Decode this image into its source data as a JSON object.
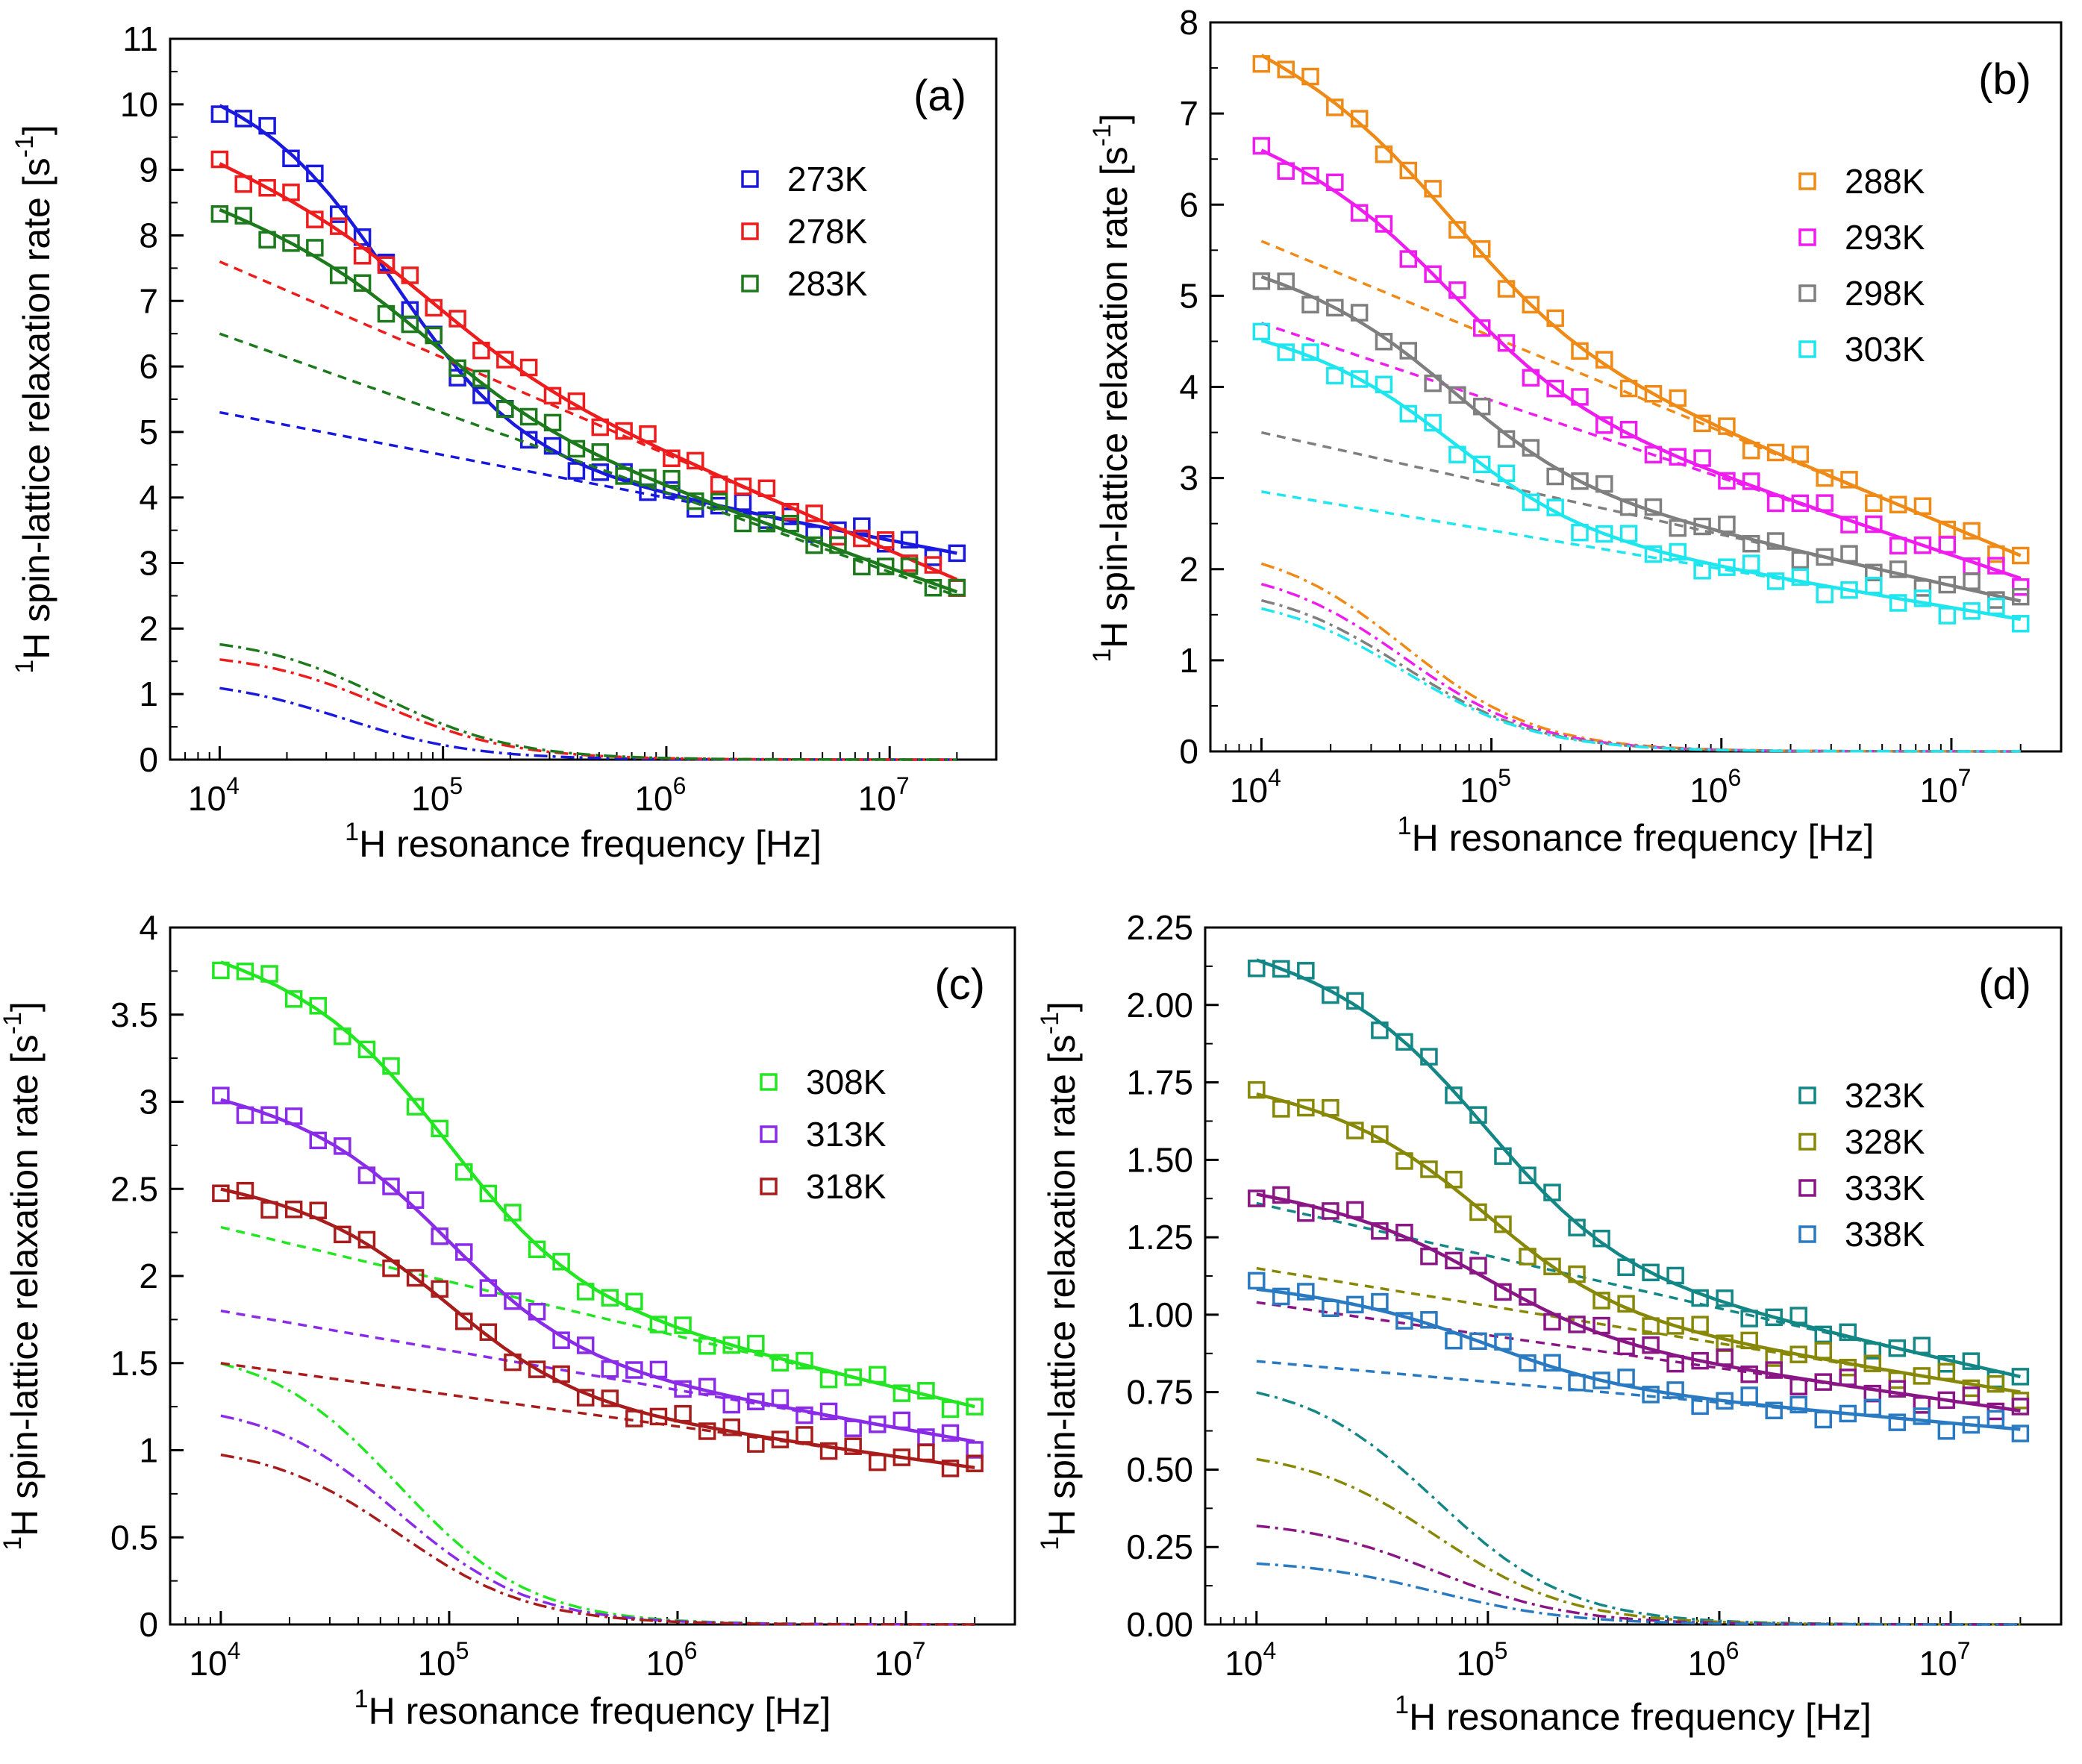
{
  "figure": {
    "ylabel_main": "H spin-lattice relaxation rate [s",
    "ylabel_sup": "1",
    "ylabel_exp": "-1",
    "ylabel_close": "]",
    "xlabel_sup": "1",
    "xlabel_main": "H resonance frequency [Hz]"
  },
  "chart_data": [
    {
      "type": "scatter",
      "panel_label": "(a)",
      "x_scale": "log",
      "xlim": [
        6000,
        30000000
      ],
      "ylim": [
        0,
        11
      ],
      "yticks": [
        0,
        1,
        2,
        3,
        4,
        5,
        6,
        7,
        8,
        9,
        10,
        11
      ],
      "ytick_labels": [
        "0",
        "1",
        "2",
        "3",
        "4",
        "5",
        "6",
        "7",
        "8",
        "9",
        "10",
        "11"
      ],
      "xticks": [
        10000,
        100000,
        1000000,
        10000000
      ],
      "xtick_labels": [
        {
          "base": "10",
          "exp": "4"
        },
        {
          "base": "10",
          "exp": "5"
        },
        {
          "base": "10",
          "exp": "6"
        },
        {
          "base": "10",
          "exp": "7"
        }
      ],
      "series": [
        {
          "name": "273K",
          "color": "#1a1adf",
          "hi": 10.3,
          "lo": 3.15,
          "c": 5.3,
          "d": 5.3,
          "a": 1.25,
          "fc": 60000,
          "off": 0.0
        },
        {
          "name": "278K",
          "color": "#ee1c1c",
          "hi": 9.15,
          "lo": 2.75,
          "c": 7.6,
          "d": 4.85,
          "a": 1.65,
          "fc": 90000,
          "off": 0.0
        },
        {
          "name": "283K",
          "color": "#1c7a1c",
          "hi": 8.4,
          "lo": 2.5,
          "c": 6.5,
          "d": 4.0,
          "a": 1.9,
          "fc": 90000,
          "off": 0.06
        }
      ]
    },
    {
      "type": "scatter",
      "panel_label": "(b)",
      "x_scale": "log",
      "xlim": [
        6000,
        30000000
      ],
      "ylim": [
        0,
        8
      ],
      "yticks": [
        0,
        1,
        2,
        3,
        4,
        5,
        6,
        7,
        8
      ],
      "ytick_labels": [
        "0",
        "1",
        "2",
        "3",
        "4",
        "5",
        "6",
        "7",
        "8"
      ],
      "xticks": [
        10000,
        100000,
        1000000,
        10000000
      ],
      "xtick_labels": [
        {
          "base": "10",
          "exp": "4"
        },
        {
          "base": "10",
          "exp": "5"
        },
        {
          "base": "10",
          "exp": "6"
        },
        {
          "base": "10",
          "exp": "7"
        }
      ],
      "series": [
        {
          "name": "288K",
          "color": "#f08a16",
          "hi": 7.75,
          "lo": 2.15,
          "c": 5.6,
          "d": 3.45,
          "a": 2.3,
          "fc": 70000,
          "off": 0.0
        },
        {
          "name": "293K",
          "color": "#ef1cef",
          "hi": 6.7,
          "lo": 1.9,
          "c": 4.7,
          "d": 2.8,
          "a": 2.05,
          "fc": 70000,
          "off": 0.0
        },
        {
          "name": "298K",
          "color": "#7f7f7f",
          "hi": 5.3,
          "lo": 1.65,
          "c": 3.5,
          "d": 1.85,
          "a": 1.85,
          "fc": 70000,
          "off": 0.0
        },
        {
          "name": "303K",
          "color": "#1ee6ee",
          "hi": 4.6,
          "lo": 1.45,
          "c": 2.85,
          "d": 1.4,
          "a": 1.75,
          "fc": 70000,
          "off": 0.0
        }
      ]
    },
    {
      "type": "scatter",
      "panel_label": "(c)",
      "x_scale": "log",
      "xlim": [
        6000,
        30000000
      ],
      "ylim": [
        0,
        4
      ],
      "yticks": [
        0,
        0.5,
        1,
        1.5,
        2,
        2.5,
        3,
        3.5,
        4
      ],
      "ytick_labels": [
        "0",
        "0.5",
        "1",
        "1.5",
        "2",
        "2.5",
        "3",
        "3.5",
        "4"
      ],
      "xticks": [
        10000,
        100000,
        1000000,
        10000000
      ],
      "xtick_labels": [
        {
          "base": "10",
          "exp": "4"
        },
        {
          "base": "10",
          "exp": "5"
        },
        {
          "base": "10",
          "exp": "6"
        },
        {
          "base": "10",
          "exp": "7"
        }
      ],
      "series": [
        {
          "name": "308K",
          "color": "#22e622",
          "hi": 3.85,
          "lo": 1.25,
          "c": 2.28,
          "d": 1.03,
          "a": 1.6,
          "fc": 100000,
          "off": 0.0
        },
        {
          "name": "313K",
          "color": "#8a2be8",
          "hi": 3.05,
          "lo": 1.05,
          "c": 1.8,
          "d": 0.75,
          "a": 1.28,
          "fc": 100000,
          "off": 0.0
        },
        {
          "name": "318K",
          "color": "#a81c1c",
          "hi": 2.53,
          "lo": 0.9,
          "c": 1.5,
          "d": 0.6,
          "a": 1.04,
          "fc": 100000,
          "off": 0.0
        }
      ]
    },
    {
      "type": "scatter",
      "panel_label": "(d)",
      "x_scale": "log",
      "xlim": [
        6000,
        30000000
      ],
      "ylim": [
        0,
        2.25
      ],
      "yticks": [
        0,
        0.25,
        0.5,
        0.75,
        1.0,
        1.25,
        1.5,
        1.75,
        2.0,
        2.25
      ],
      "ytick_labels": [
        "0.00",
        "0.25",
        "0.50",
        "0.75",
        "1.00",
        "1.25",
        "1.50",
        "1.75",
        "2.00",
        "2.25"
      ],
      "xticks": [
        10000,
        100000,
        1000000,
        10000000
      ],
      "xtick_labels": [
        {
          "base": "10",
          "exp": "4"
        },
        {
          "base": "10",
          "exp": "5"
        },
        {
          "base": "10",
          "exp": "6"
        },
        {
          "base": "10",
          "exp": "7"
        }
      ],
      "series": [
        {
          "name": "323K",
          "color": "#138686",
          "hi": 2.17,
          "lo": 0.8,
          "c": 1.36,
          "d": 0.56,
          "a": 0.8,
          "fc": 100000,
          "off": 0.0
        },
        {
          "name": "328K",
          "color": "#888808",
          "hi": 1.73,
          "lo": 0.75,
          "c": 1.15,
          "d": 0.4,
          "a": 0.57,
          "fc": 100000,
          "off": 0.0
        },
        {
          "name": "333K",
          "color": "#8a1686",
          "hi": 1.4,
          "lo": 0.69,
          "c": 1.04,
          "d": 0.35,
          "a": 0.34,
          "fc": 100000,
          "off": 0.0
        },
        {
          "name": "338K",
          "color": "#2a7ac2",
          "hi": 1.09,
          "lo": 0.63,
          "c": 0.85,
          "d": 0.22,
          "a": 0.21,
          "fc": 100000,
          "off": 0.0
        }
      ]
    }
  ]
}
